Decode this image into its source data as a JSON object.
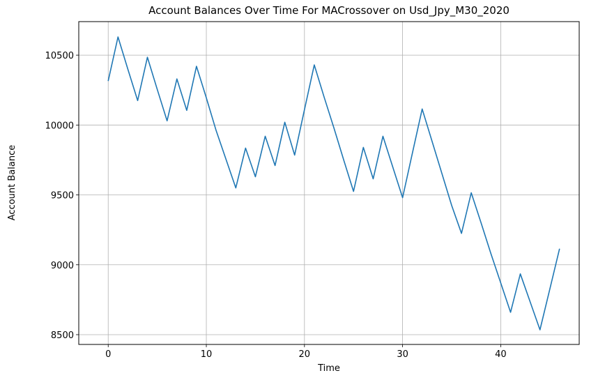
{
  "chart_data": {
    "type": "line",
    "title": "Account Balances Over Time For MACrossover on Usd_Jpy_M30_2020",
    "xlabel": "Time",
    "ylabel": "Account Balance",
    "xlim": [
      -3,
      48
    ],
    "ylim": [
      8430,
      10740
    ],
    "xticks": [
      0,
      10,
      20,
      30,
      40
    ],
    "yticks": [
      8500,
      9000,
      9500,
      10000,
      10500
    ],
    "grid": true,
    "colors": {
      "line": "#1f77b4",
      "grid": "#b0b0b0"
    },
    "series": [
      {
        "x": [
          0,
          1,
          2,
          3,
          4,
          5,
          6,
          7,
          8,
          9,
          10,
          11,
          12,
          13,
          14,
          15,
          16,
          17,
          18,
          19,
          20,
          21,
          22,
          23,
          24,
          25,
          26,
          27,
          28,
          29,
          30,
          31,
          32,
          33,
          34,
          35,
          36,
          37,
          38,
          39,
          40,
          41,
          42,
          43,
          44,
          45,
          46
        ],
        "values": [
          10315,
          10630,
          10400,
          10175,
          10485,
          10255,
          10030,
          10330,
          10105,
          10420,
          10195,
          9960,
          9755,
          9550,
          9835,
          9630,
          9920,
          9710,
          10020,
          9785,
          10110,
          10430,
          10200,
          9980,
          9750,
          9525,
          9840,
          9615,
          9920,
          9700,
          9480,
          9800,
          10115,
          9885,
          9655,
          9425,
          9225,
          9515,
          9300,
          9080,
          8870,
          8660,
          8935,
          8735,
          8535,
          8825,
          9115
        ]
      }
    ]
  }
}
